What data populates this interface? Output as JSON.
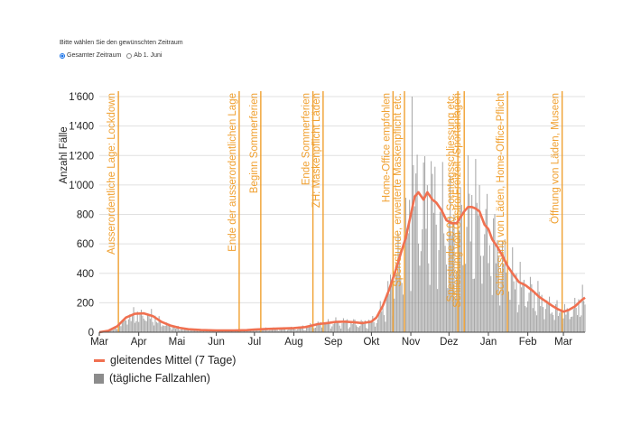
{
  "header": {
    "range_prompt": "Bitte wählen Sie den gewünschten Zeitraum",
    "options": [
      {
        "label": "Gesamter Zeitraum",
        "selected": true
      },
      {
        "label": "Ab 1. Juni",
        "selected": false
      }
    ]
  },
  "colors": {
    "line": "#f07050",
    "bars": "#8c8c8c",
    "events": "#f0a030",
    "grid": "#e0e0e0",
    "accent": "#1a73e8"
  },
  "chart_data": {
    "type": "bar",
    "ylabel": "Anzahl Fälle",
    "ylim": [
      0,
      1600
    ],
    "yticks": [
      0,
      200,
      400,
      600,
      800,
      1000,
      1200,
      1400,
      1600
    ],
    "ytick_labels": [
      "0",
      "200",
      "400",
      "600",
      "800",
      "1'000",
      "1'200",
      "1'400",
      "1'600"
    ],
    "x_start": "2020-03-01",
    "x_end": "2021-03-18",
    "months": [
      "Mar",
      "Apr",
      "Mai",
      "Jun",
      "Jul",
      "Aug",
      "Sep",
      "Okt",
      "Nov",
      "Dez",
      "Jan",
      "Feb",
      "Mar"
    ],
    "grid": true,
    "legend_position": "bottom-left",
    "series": [
      {
        "name": "gleitendes Mittel (7 Tage)",
        "kind": "line",
        "points": [
          [
            "2020-03-01",
            0
          ],
          [
            "2020-03-08",
            10
          ],
          [
            "2020-03-15",
            40
          ],
          [
            "2020-03-22",
            100
          ],
          [
            "2020-03-29",
            125
          ],
          [
            "2020-04-05",
            128
          ],
          [
            "2020-04-12",
            110
          ],
          [
            "2020-04-19",
            70
          ],
          [
            "2020-04-26",
            45
          ],
          [
            "2020-05-03",
            30
          ],
          [
            "2020-05-10",
            20
          ],
          [
            "2020-05-20",
            15
          ],
          [
            "2020-06-01",
            12
          ],
          [
            "2020-06-15",
            12
          ],
          [
            "2020-06-25",
            14
          ],
          [
            "2020-07-01",
            18
          ],
          [
            "2020-07-10",
            22
          ],
          [
            "2020-07-20",
            25
          ],
          [
            "2020-08-01",
            28
          ],
          [
            "2020-08-10",
            35
          ],
          [
            "2020-08-20",
            55
          ],
          [
            "2020-08-27",
            62
          ],
          [
            "2020-09-03",
            70
          ],
          [
            "2020-09-10",
            72
          ],
          [
            "2020-09-17",
            68
          ],
          [
            "2020-09-24",
            62
          ],
          [
            "2020-10-01",
            72
          ],
          [
            "2020-10-05",
            100
          ],
          [
            "2020-10-10",
            180
          ],
          [
            "2020-10-15",
            290
          ],
          [
            "2020-10-20",
            420
          ],
          [
            "2020-10-25",
            560
          ],
          [
            "2020-10-28",
            640
          ],
          [
            "2020-11-01",
            800
          ],
          [
            "2020-11-04",
            920
          ],
          [
            "2020-11-07",
            950
          ],
          [
            "2020-11-11",
            900
          ],
          [
            "2020-11-14",
            950
          ],
          [
            "2020-11-18",
            900
          ],
          [
            "2020-11-21",
            880
          ],
          [
            "2020-11-25",
            830
          ],
          [
            "2020-11-29",
            760
          ],
          [
            "2020-12-03",
            740
          ],
          [
            "2020-12-07",
            740
          ],
          [
            "2020-12-10",
            780
          ],
          [
            "2020-12-13",
            820
          ],
          [
            "2020-12-16",
            850
          ],
          [
            "2020-12-19",
            850
          ],
          [
            "2020-12-22",
            840
          ],
          [
            "2020-12-25",
            820
          ],
          [
            "2020-12-29",
            730
          ],
          [
            "2021-01-01",
            700
          ],
          [
            "2021-01-04",
            630
          ],
          [
            "2021-01-08",
            580
          ],
          [
            "2021-01-12",
            520
          ],
          [
            "2021-01-16",
            450
          ],
          [
            "2021-01-20",
            400
          ],
          [
            "2021-01-25",
            340
          ],
          [
            "2021-01-30",
            320
          ],
          [
            "2021-02-05",
            280
          ],
          [
            "2021-02-10",
            240
          ],
          [
            "2021-02-15",
            210
          ],
          [
            "2021-02-20",
            180
          ],
          [
            "2021-02-25",
            155
          ],
          [
            "2021-03-01",
            140
          ],
          [
            "2021-03-05",
            150
          ],
          [
            "2021-03-10",
            175
          ],
          [
            "2021-03-15",
            215
          ],
          [
            "2021-03-18",
            235
          ]
        ]
      },
      {
        "name": "(tägliche Fallzahlen)",
        "kind": "bars",
        "note": "daily values fluctuate around the moving average; peak about 1600 on 2020-11-02"
      }
    ],
    "annotations": [
      {
        "date": "2020-03-16",
        "label": "Ausserordentliche Lage: Lockdown"
      },
      {
        "date": "2020-06-19",
        "label": "Ende der ausserordentlichen Lage"
      },
      {
        "date": "2020-07-06",
        "label": "Beginn Sommerferien"
      },
      {
        "date": "2020-08-16",
        "label": "Ende Sommerferien"
      },
      {
        "date": "2020-08-24",
        "label": "ZH: Maskenpflicht Läden"
      },
      {
        "date": "2020-10-18",
        "label": "Home-Office empfohlen"
      },
      {
        "date": "2020-10-27",
        "label": "Sperrstunde, erweiterte Maskenpflicht etc."
      },
      {
        "date": "2020-12-08",
        "label": "Sperrstunde 19.00, Sonntagsschliessung etc."
      },
      {
        "date": "2020-12-13",
        "label": "Schliessung von Gastro/Freizeit-/Sportanlagen"
      },
      {
        "date": "2021-01-16",
        "label": "Schliessung von Läden, Home-Office-Pflicht"
      },
      {
        "date": "2021-02-28",
        "label": "Öffnung von Läden, Museen"
      }
    ]
  }
}
